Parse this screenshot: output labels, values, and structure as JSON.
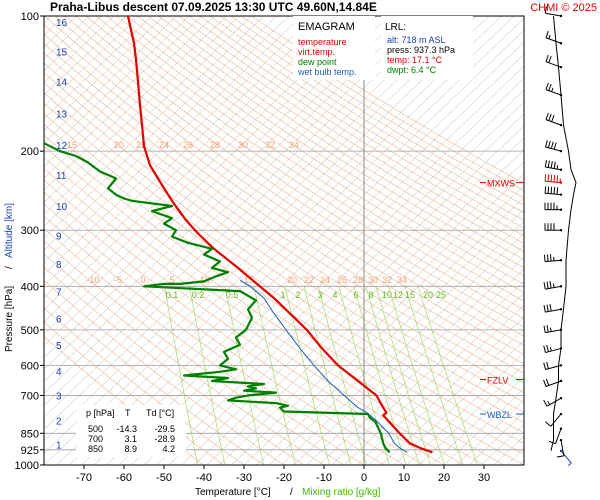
{
  "header": {
    "title": "Praha-Libus   descent   07.09.2025 13:30 UTC  49.60N,14.84E",
    "copyright": "CHMI © 2025"
  },
  "legend": {
    "heading": "EMAGRAM",
    "entries": [
      {
        "label": "temperature",
        "color": "#e00000"
      },
      {
        "label": "virt.temp.",
        "color": "#e00000"
      },
      {
        "label": "dew point",
        "color": "#008000"
      },
      {
        "label": "wet bulb temp.",
        "color": "#1a60c0"
      }
    ]
  },
  "lrl": {
    "heading": "LRL:",
    "lines": [
      {
        "text": "alt: 718 m ASL",
        "color": "#1a3fb0"
      },
      {
        "text": "press: 937.3 hPa",
        "color": "#000000"
      },
      {
        "text": "temp: 17.1 °C",
        "color": "#e00000"
      },
      {
        "text": "dwpt: 6.4 °C",
        "color": "#008000"
      }
    ]
  },
  "levels": [
    {
      "label": "MXWS",
      "p": 235,
      "color": "#e00000"
    },
    {
      "label": "FZLV",
      "p": 645,
      "color": "#e00000"
    },
    {
      "label": "WBZL",
      "p": 770,
      "color": "#1a60c0"
    }
  ],
  "table": {
    "headers": [
      "p [hPa]",
      "T",
      "Td [°C]"
    ],
    "rows": [
      [
        "500",
        "-14.3",
        "-29.5"
      ],
      [
        "700",
        "3.1",
        "-28.9"
      ],
      [
        "850",
        "8.9",
        "4.2"
      ]
    ]
  },
  "chart_data": {
    "type": "line",
    "xlabel": "Temperature [°C]",
    "xlabel2": "Mixing ratio [g/kg]",
    "ylabel": "Pressure [hPa]",
    "ylabel2": "Altitude [km]",
    "xlim": [
      -80,
      40
    ],
    "ylim": [
      1000,
      100
    ],
    "yscale": "log",
    "x_ticks": [
      -70,
      -60,
      -50,
      -40,
      -30,
      -20,
      -10,
      0,
      10,
      20,
      30
    ],
    "p_ticks": [
      100,
      200,
      300,
      400,
      500,
      600,
      700,
      850,
      925,
      1000
    ],
    "km_ticks": [
      {
        "km": 1,
        "p": 900
      },
      {
        "km": 2,
        "p": 795
      },
      {
        "km": 3,
        "p": 700
      },
      {
        "km": 4,
        "p": 617
      },
      {
        "km": 5,
        "p": 541
      },
      {
        "km": 6,
        "p": 472
      },
      {
        "km": 7,
        "p": 411
      },
      {
        "km": 8,
        "p": 357
      },
      {
        "km": 9,
        "p": 308
      },
      {
        "km": 10,
        "p": 265
      },
      {
        "km": 11,
        "p": 226
      },
      {
        "km": 12,
        "p": 194
      },
      {
        "km": 13,
        "p": 165
      },
      {
        "km": 14,
        "p": 140
      },
      {
        "km": 15,
        "p": 120
      },
      {
        "km": 16,
        "p": 103
      }
    ],
    "theta_labels_upper": [
      "15",
      "20",
      "22",
      "24",
      "26",
      "28",
      "30",
      "32",
      "34"
    ],
    "theta_labels_lower": [
      "-10",
      "-5",
      "0",
      "5",
      "10",
      "15",
      "20",
      "22",
      "24",
      "26",
      "28",
      "30",
      "32",
      "34"
    ],
    "mixing_ratio_labels": [
      "0.1",
      "0.2",
      "0.5",
      "1",
      "2",
      "3",
      "4",
      "6",
      "8",
      "10",
      "12",
      "15",
      "20",
      "25"
    ],
    "series": [
      {
        "name": "temperature",
        "color": "#e00000",
        "points": [
          [
            17.1,
            937
          ],
          [
            14.5,
            920
          ],
          [
            11.5,
            895
          ],
          [
            8.9,
            850
          ],
          [
            6.2,
            800
          ],
          [
            4.8,
            775
          ],
          [
            5.6,
            765
          ],
          [
            4.8,
            745
          ],
          [
            3.1,
            700
          ],
          [
            -1.5,
            650
          ],
          [
            -6.5,
            600
          ],
          [
            -10.5,
            550
          ],
          [
            -14.3,
            500
          ],
          [
            -18.5,
            460
          ],
          [
            -22.5,
            425
          ],
          [
            -27.5,
            390
          ],
          [
            -32.5,
            358
          ],
          [
            -37.5,
            330
          ],
          [
            -41.5,
            305
          ],
          [
            -44.5,
            285
          ],
          [
            -47.5,
            262
          ],
          [
            -50.5,
            238
          ],
          [
            -53.5,
            215
          ],
          [
            -55,
            195
          ],
          [
            -55.5,
            175
          ],
          [
            -56,
            158
          ],
          [
            -56.5,
            140
          ],
          [
            -57,
            125
          ],
          [
            -57.5,
            115
          ],
          [
            -58.5,
            105
          ],
          [
            -59,
            100
          ]
        ]
      },
      {
        "name": "dew point",
        "color": "#008000",
        "points": [
          [
            6.4,
            937
          ],
          [
            5.5,
            920
          ],
          [
            4.8,
            895
          ],
          [
            4.2,
            850
          ],
          [
            2.8,
            800
          ],
          [
            1.5,
            785
          ],
          [
            1,
            770
          ],
          [
            -20,
            760
          ],
          [
            -21,
            745
          ],
          [
            -19,
            738
          ],
          [
            -22,
            728
          ],
          [
            -34,
            718
          ],
          [
            -32,
            708
          ],
          [
            -28.9,
            700
          ],
          [
            -22,
            690
          ],
          [
            -30,
            683
          ],
          [
            -27,
            675
          ],
          [
            -29,
            668
          ],
          [
            -25,
            660
          ],
          [
            -38,
            650
          ],
          [
            -34,
            640
          ],
          [
            -45,
            632
          ],
          [
            -36,
            620
          ],
          [
            -32,
            612
          ],
          [
            -36,
            600
          ],
          [
            -34,
            580
          ],
          [
            -35,
            560
          ],
          [
            -31,
            540
          ],
          [
            -32,
            520
          ],
          [
            -29.5,
            500
          ],
          [
            -28,
            470
          ],
          [
            -29,
            450
          ],
          [
            -27,
            430
          ],
          [
            -31,
            410
          ],
          [
            -55,
            400
          ],
          [
            -50,
            395
          ],
          [
            -46,
            395
          ],
          [
            -40,
            390
          ],
          [
            -37,
            380
          ],
          [
            -34,
            372
          ],
          [
            -38,
            364
          ],
          [
            -36,
            352
          ],
          [
            -40,
            340
          ],
          [
            -38,
            330
          ],
          [
            -44,
            320
          ],
          [
            -48,
            310
          ],
          [
            -47,
            300
          ],
          [
            -50,
            290
          ],
          [
            -48,
            282
          ],
          [
            -53,
            272
          ],
          [
            -48,
            265
          ],
          [
            -58,
            258
          ],
          [
            -60,
            255
          ],
          [
            -62,
            250
          ],
          [
            -64,
            242
          ],
          [
            -62,
            230
          ],
          [
            -66,
            222
          ],
          [
            -69,
            212
          ],
          [
            -72,
            205
          ],
          [
            -76,
            200
          ],
          [
            -80,
            192
          ]
        ]
      },
      {
        "name": "wet bulb temp.",
        "color": "#1a60c0",
        "points": [
          [
            10.8,
            937
          ],
          [
            9.2,
            920
          ],
          [
            7.6,
            895
          ],
          [
            6.2,
            850
          ],
          [
            3.3,
            800
          ],
          [
            1.5,
            775
          ],
          [
            0.8,
            765
          ],
          [
            -1.5,
            745
          ],
          [
            -5,
            700
          ],
          [
            -9,
            650
          ],
          [
            -12.5,
            600
          ],
          [
            -16,
            550
          ],
          [
            -19.5,
            500
          ],
          [
            -22.5,
            460
          ],
          [
            -25,
            425
          ],
          [
            -28.5,
            400
          ],
          [
            -31,
            388
          ]
        ]
      }
    ],
    "wind": [
      {
        "p": 930,
        "dir": 140,
        "kt": 5
      },
      {
        "p": 880,
        "dir": 170,
        "kt": 10
      },
      {
        "p": 830,
        "dir": 200,
        "kt": 10
      },
      {
        "p": 770,
        "dir": 220,
        "kt": 10
      },
      {
        "p": 710,
        "dir": 240,
        "kt": 15
      },
      {
        "p": 650,
        "dir": 250,
        "kt": 20
      },
      {
        "p": 600,
        "dir": 255,
        "kt": 20
      },
      {
        "p": 550,
        "dir": 255,
        "kt": 25
      },
      {
        "p": 500,
        "dir": 260,
        "kt": 25
      },
      {
        "p": 450,
        "dir": 260,
        "kt": 30
      },
      {
        "p": 400,
        "dir": 260,
        "kt": 35
      },
      {
        "p": 350,
        "dir": 265,
        "kt": 35
      },
      {
        "p": 300,
        "dir": 270,
        "kt": 40
      },
      {
        "p": 270,
        "dir": 270,
        "kt": 45
      },
      {
        "p": 250,
        "dir": 275,
        "kt": 50
      },
      {
        "p": 235,
        "dir": 275,
        "kt": 55
      },
      {
        "p": 220,
        "dir": 280,
        "kt": 45
      },
      {
        "p": 200,
        "dir": 285,
        "kt": 40
      },
      {
        "p": 175,
        "dir": 290,
        "kt": 30
      },
      {
        "p": 150,
        "dir": 290,
        "kt": 25
      },
      {
        "p": 130,
        "dir": 290,
        "kt": 20
      },
      {
        "p": 115,
        "dir": 290,
        "kt": 15
      },
      {
        "p": 100,
        "dir": 280,
        "kt": 10
      }
    ]
  }
}
